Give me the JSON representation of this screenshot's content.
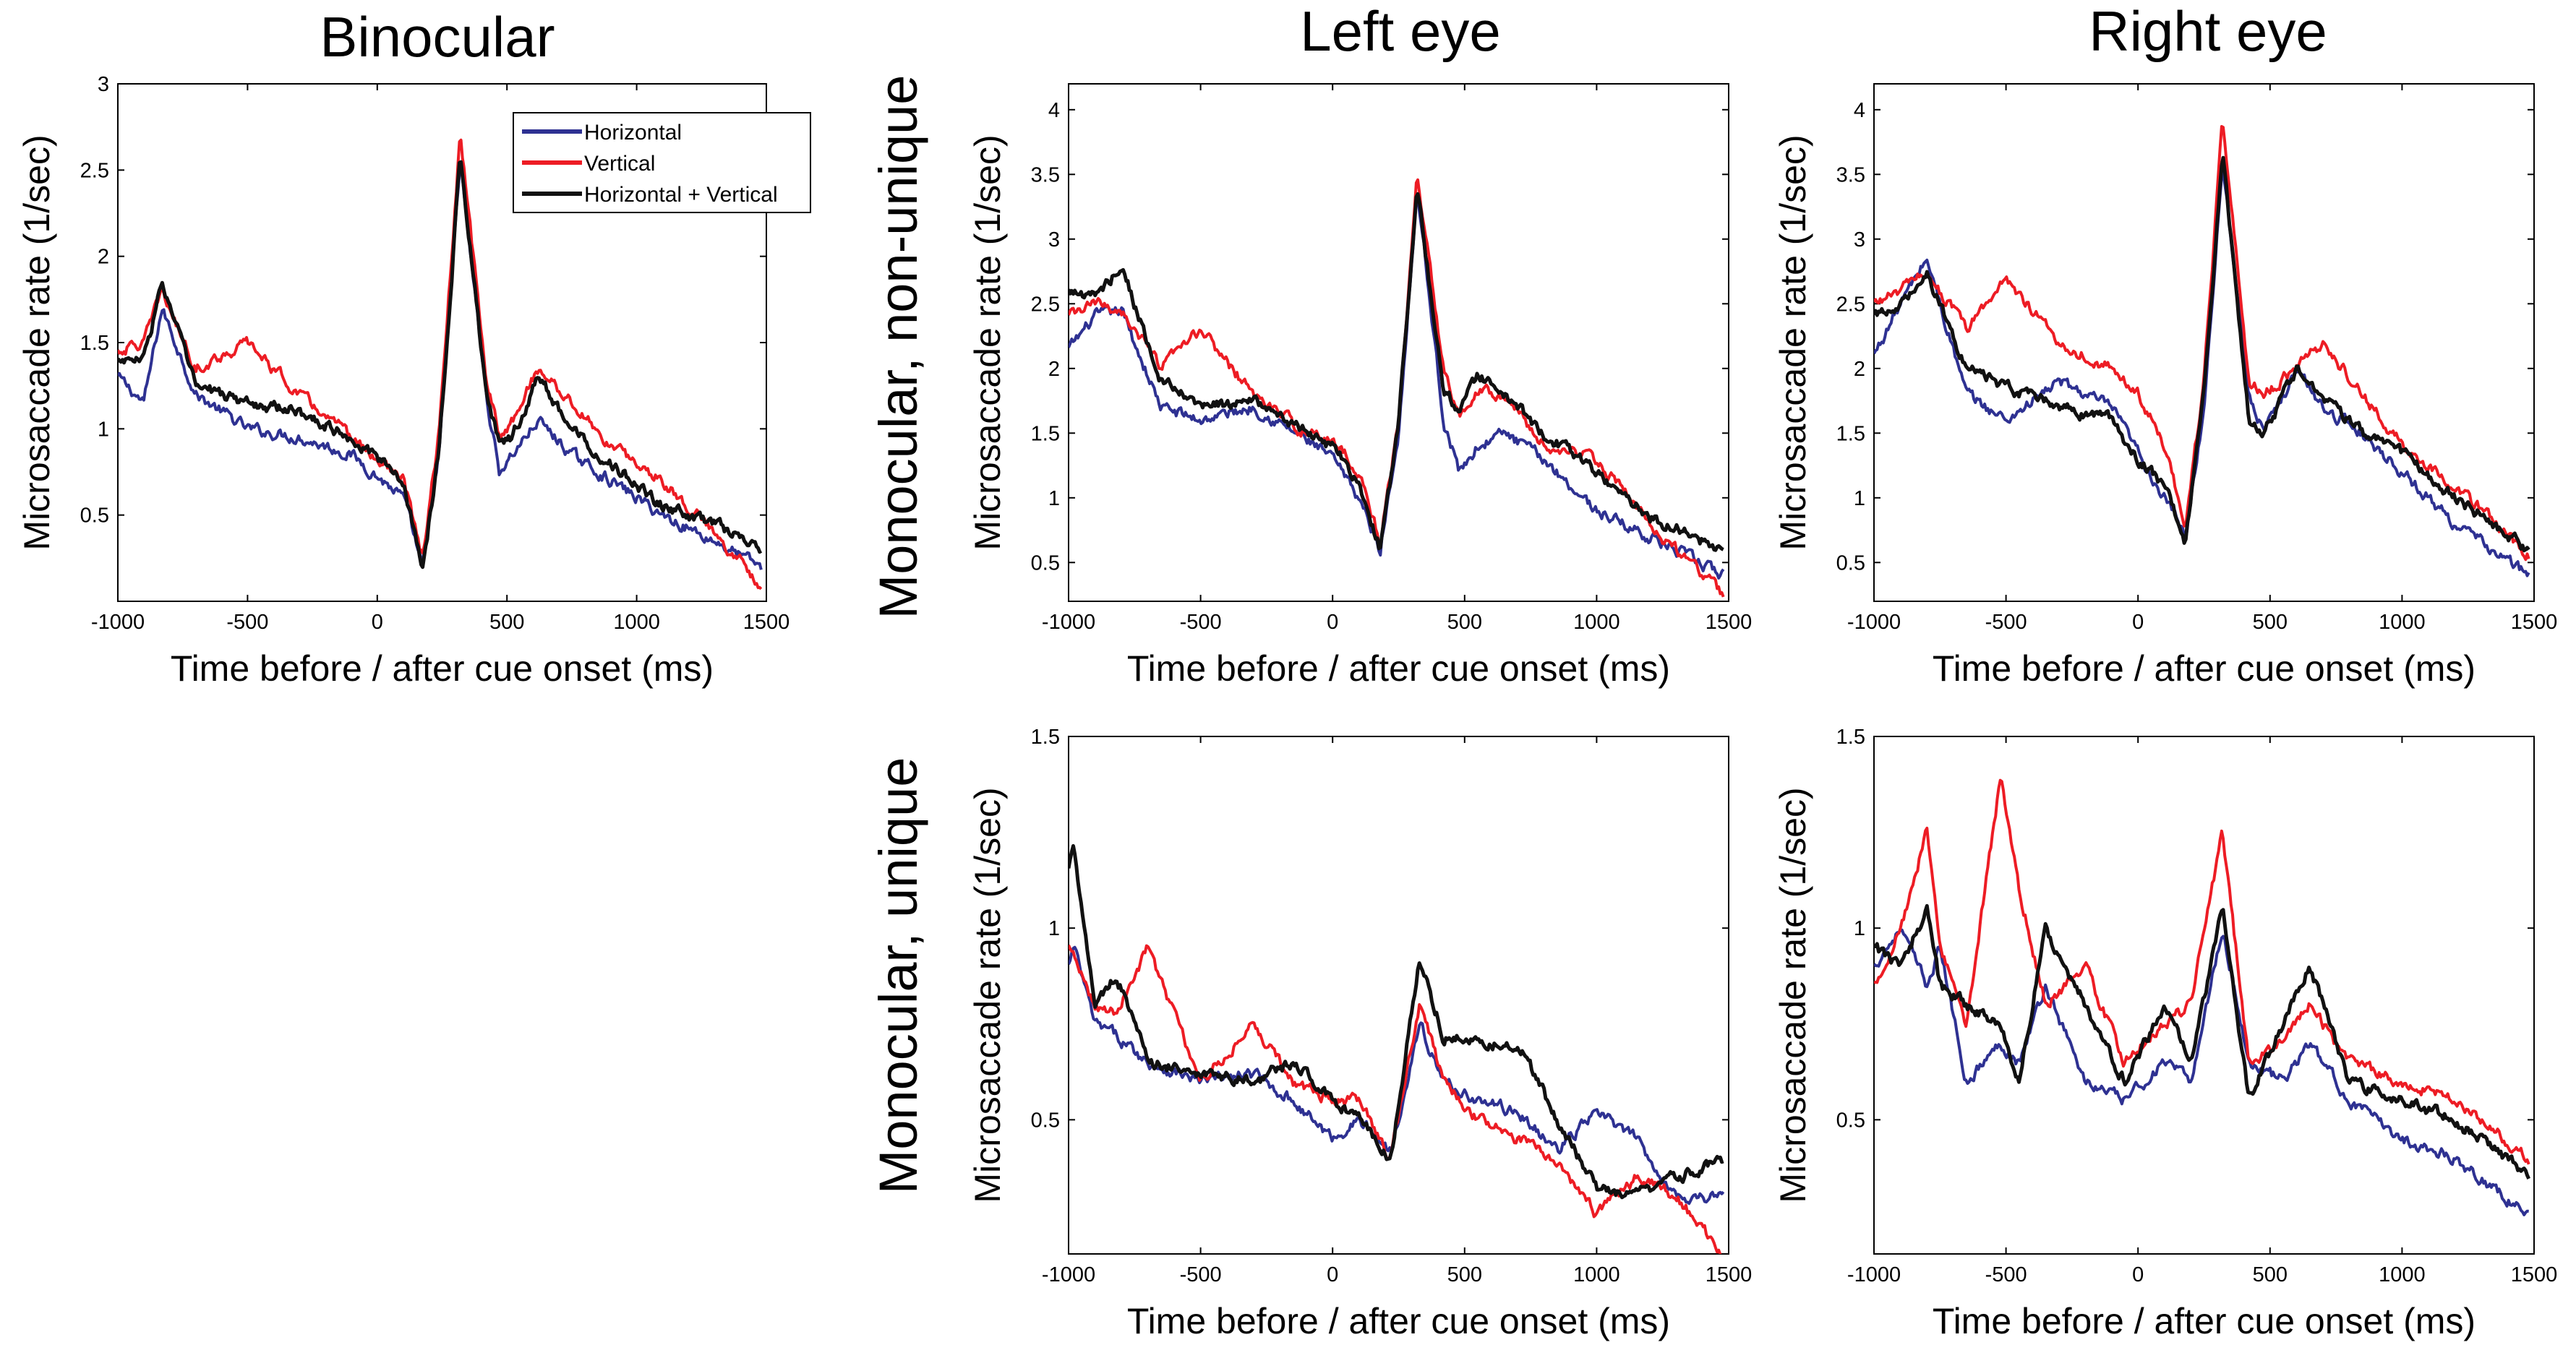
{
  "figure": {
    "col_titles": [
      "Binocular",
      "Left eye",
      "Right eye"
    ],
    "row_labels": [
      "Monocular, non-unique",
      "Monocular, unique"
    ]
  },
  "legend": {
    "entries": [
      {
        "label": "Horizontal",
        "color": "#2e3192"
      },
      {
        "label": "Vertical",
        "color": "#ed1c24"
      },
      {
        "label": "Horizontal + Vertical",
        "color": "#111111"
      }
    ]
  },
  "chart_data": [
    {
      "id": "binocular",
      "type": "line",
      "title": "Binocular",
      "xlabel": "Time before / after cue onset (ms)",
      "ylabel": "Microsaccade rate (1/sec)",
      "xlim": [
        -1000,
        1500
      ],
      "ylim": [
        0,
        3
      ],
      "xticks": [
        -1000,
        -500,
        0,
        500,
        1000,
        1500
      ],
      "xtick_labels": [
        "-1000",
        "-500",
        "0",
        "500",
        "1000",
        "1500"
      ],
      "yticks": [
        0.5,
        1,
        1.5,
        2,
        2.5,
        3
      ],
      "ytick_labels": [
        "0.5",
        "1",
        "1.5",
        "2",
        "2.5",
        "3"
      ],
      "x": [
        -1000,
        -900,
        -830,
        -700,
        -500,
        -300,
        -100,
        100,
        175,
        240,
        320,
        420,
        470,
        520,
        620,
        750,
        900,
        1100,
        1300,
        1480
      ],
      "series": [
        {
          "name": "Horizontal",
          "color": "#2e3192",
          "values": [
            1.3,
            1.15,
            1.7,
            1.2,
            1.0,
            0.95,
            0.85,
            0.6,
            0.2,
            0.9,
            2.55,
            1.2,
            0.75,
            0.85,
            1.05,
            0.85,
            0.7,
            0.5,
            0.35,
            0.2
          ]
        },
        {
          "name": "Vertical",
          "color": "#ed1c24",
          "values": [
            1.45,
            1.5,
            1.8,
            1.35,
            1.5,
            1.2,
            0.95,
            0.7,
            0.25,
            1.0,
            2.7,
            1.3,
            0.95,
            1.05,
            1.35,
            1.15,
            0.9,
            0.7,
            0.4,
            0.1
          ]
        },
        {
          "name": "Horizontal + Vertical",
          "color": "#111111",
          "values": [
            1.4,
            1.4,
            1.85,
            1.25,
            1.15,
            1.1,
            0.95,
            0.7,
            0.18,
            0.9,
            2.6,
            1.2,
            0.9,
            0.95,
            1.3,
            1.0,
            0.8,
            0.55,
            0.45,
            0.3
          ]
        }
      ]
    },
    {
      "id": "left-nonunique",
      "type": "line",
      "title": "Left eye",
      "xlabel": "Time before / after cue onset (ms)",
      "ylabel": "Microsaccade rate (1/sec)",
      "xlim": [
        -1000,
        1500
      ],
      "ylim": [
        0.2,
        4.2
      ],
      "xticks": [
        -1000,
        -500,
        0,
        500,
        1000,
        1500
      ],
      "xtick_labels": [
        "-1000",
        "-500",
        "0",
        "500",
        "1000",
        "1500"
      ],
      "yticks": [
        0.5,
        1,
        1.5,
        2,
        2.5,
        3,
        3.5,
        4
      ],
      "ytick_labels": [
        "0.5",
        "1",
        "1.5",
        "2",
        "2.5",
        "3",
        "3.5",
        "4"
      ],
      "x": [
        -1000,
        -900,
        -800,
        -650,
        -500,
        -300,
        -100,
        0,
        100,
        180,
        250,
        320,
        420,
        480,
        550,
        650,
        800,
        1000,
        1200,
        1480
      ],
      "series": [
        {
          "name": "Horizontal",
          "color": "#2e3192",
          "values": [
            2.15,
            2.4,
            2.45,
            1.7,
            1.6,
            1.7,
            1.45,
            1.3,
            1.0,
            0.6,
            1.5,
            3.4,
            1.6,
            1.2,
            1.4,
            1.5,
            1.3,
            0.9,
            0.7,
            0.4
          ]
        },
        {
          "name": "Vertical",
          "color": "#ed1c24",
          "values": [
            2.4,
            2.5,
            2.45,
            2.0,
            2.3,
            1.8,
            1.5,
            1.45,
            1.2,
            0.65,
            1.6,
            3.5,
            2.0,
            1.65,
            1.85,
            1.8,
            1.4,
            1.3,
            0.8,
            0.25
          ]
        },
        {
          "name": "Horizontal + Vertical",
          "color": "#111111",
          "values": [
            2.6,
            2.55,
            2.8,
            1.9,
            1.7,
            1.75,
            1.5,
            1.4,
            1.1,
            0.6,
            1.55,
            3.45,
            1.8,
            1.7,
            1.95,
            1.8,
            1.5,
            1.2,
            0.85,
            0.6
          ]
        }
      ]
    },
    {
      "id": "right-nonunique",
      "type": "line",
      "title": "Right eye",
      "xlabel": "Time before / after cue onset (ms)",
      "ylabel": "Microsaccade rate (1/sec)",
      "xlim": [
        -1000,
        1500
      ],
      "ylim": [
        0.2,
        4.2
      ],
      "xticks": [
        -1000,
        -500,
        0,
        500,
        1000,
        1500
      ],
      "xtick_labels": [
        "-1000",
        "-500",
        "0",
        "500",
        "1000",
        "1500"
      ],
      "yticks": [
        0.5,
        1,
        1.5,
        2,
        2.5,
        3,
        3.5,
        4
      ],
      "ytick_labels": [
        "0.5",
        "1",
        "1.5",
        "2",
        "2.5",
        "3",
        "3.5",
        "4"
      ],
      "x": [
        -1000,
        -900,
        -800,
        -650,
        -500,
        -300,
        -100,
        0,
        100,
        180,
        250,
        320,
        420,
        480,
        600,
        700,
        850,
        1000,
        1200,
        1480
      ],
      "series": [
        {
          "name": "Horizontal",
          "color": "#2e3192",
          "values": [
            2.1,
            2.5,
            2.85,
            1.8,
            1.6,
            1.9,
            1.7,
            1.35,
            1.0,
            0.7,
            1.7,
            3.6,
            1.8,
            1.5,
            2.0,
            1.7,
            1.5,
            1.2,
            0.8,
            0.4
          ]
        },
        {
          "name": "Vertical",
          "color": "#ed1c24",
          "values": [
            2.5,
            2.6,
            2.75,
            2.3,
            2.7,
            2.2,
            2.0,
            1.8,
            1.4,
            0.8,
            1.9,
            3.9,
            1.9,
            1.8,
            2.0,
            2.2,
            1.8,
            1.4,
            1.1,
            0.55
          ]
        },
        {
          "name": "Horizontal + Vertical",
          "color": "#111111",
          "values": [
            2.4,
            2.5,
            2.75,
            2.0,
            1.85,
            1.7,
            1.6,
            1.3,
            1.1,
            0.65,
            1.8,
            3.65,
            1.6,
            1.5,
            2.0,
            1.8,
            1.5,
            1.35,
            1.0,
            0.6
          ]
        }
      ]
    },
    {
      "id": "left-unique",
      "type": "line",
      "title": "",
      "xlabel": "Time before / after cue onset (ms)",
      "ylabel": "Microsaccade rate (1/sec)",
      "xlim": [
        -1000,
        1500
      ],
      "ylim": [
        0.15,
        1.5
      ],
      "xticks": [
        -1000,
        -500,
        0,
        500,
        1000,
        1500
      ],
      "xtick_labels": [
        "-1000",
        "-500",
        "0",
        "500",
        "1000",
        "1500"
      ],
      "yticks": [
        0.5,
        1,
        1.5
      ],
      "ytick_labels": [
        "0.5",
        "1",
        "1.5"
      ],
      "x": [
        -1000,
        -980,
        -900,
        -820,
        -700,
        -500,
        -300,
        -150,
        0,
        100,
        220,
        330,
        420,
        550,
        700,
        850,
        1000,
        1150,
        1300,
        1480
      ],
      "series": [
        {
          "name": "Horizontal",
          "color": "#2e3192",
          "values": [
            0.9,
            0.95,
            0.75,
            0.72,
            0.65,
            0.6,
            0.62,
            0.55,
            0.45,
            0.5,
            0.42,
            0.75,
            0.6,
            0.55,
            0.52,
            0.42,
            0.52,
            0.45,
            0.3,
            0.3
          ]
        },
        {
          "name": "Vertical",
          "color": "#ed1c24",
          "values": [
            0.95,
            0.92,
            0.8,
            0.78,
            0.95,
            0.6,
            0.75,
            0.6,
            0.55,
            0.55,
            0.4,
            0.8,
            0.6,
            0.5,
            0.45,
            0.4,
            0.25,
            0.35,
            0.3,
            0.15
          ]
        },
        {
          "name": "Horizontal + Vertical",
          "color": "#111111",
          "values": [
            1.15,
            1.22,
            0.8,
            0.88,
            0.65,
            0.62,
            0.6,
            0.65,
            0.55,
            0.5,
            0.4,
            0.92,
            0.72,
            0.7,
            0.7,
            0.5,
            0.32,
            0.3,
            0.35,
            0.4
          ]
        }
      ]
    },
    {
      "id": "right-unique",
      "type": "line",
      "title": "",
      "xlabel": "Time before / after cue onset (ms)",
      "ylabel": "Microsaccade rate (1/sec)",
      "xlim": [
        -1000,
        1500
      ],
      "ylim": [
        0.15,
        1.5
      ],
      "xticks": [
        -1000,
        -500,
        0,
        500,
        1000,
        1500
      ],
      "xtick_labels": [
        "-1000",
        "-500",
        "0",
        "500",
        "1000",
        "1500"
      ],
      "yticks": [
        0.5,
        1,
        1.5
      ],
      "ytick_labels": [
        "0.5",
        "1",
        "1.5"
      ],
      "x": [
        -1000,
        -900,
        -800,
        -750,
        -650,
        -520,
        -450,
        -350,
        -200,
        -50,
        100,
        200,
        320,
        420,
        550,
        650,
        800,
        1000,
        1200,
        1480
      ],
      "series": [
        {
          "name": "Horizontal",
          "color": "#2e3192",
          "values": [
            0.9,
            1.0,
            0.85,
            0.95,
            0.6,
            0.7,
            0.65,
            0.85,
            0.6,
            0.55,
            0.65,
            0.6,
            1.0,
            0.65,
            0.6,
            0.7,
            0.55,
            0.45,
            0.4,
            0.25
          ]
        },
        {
          "name": "Vertical",
          "color": "#ed1c24",
          "values": [
            0.85,
            1.0,
            1.25,
            0.95,
            0.75,
            1.4,
            1.1,
            0.8,
            0.9,
            0.65,
            0.75,
            0.8,
            1.25,
            0.65,
            0.7,
            0.8,
            0.65,
            0.6,
            0.55,
            0.4
          ]
        },
        {
          "name": "Horizontal + Vertical",
          "color": "#111111",
          "values": [
            0.95,
            0.9,
            1.05,
            0.85,
            0.8,
            0.75,
            0.6,
            1.0,
            0.8,
            0.6,
            0.8,
            0.65,
            1.05,
            0.55,
            0.75,
            0.9,
            0.6,
            0.55,
            0.5,
            0.35
          ]
        }
      ]
    }
  ]
}
